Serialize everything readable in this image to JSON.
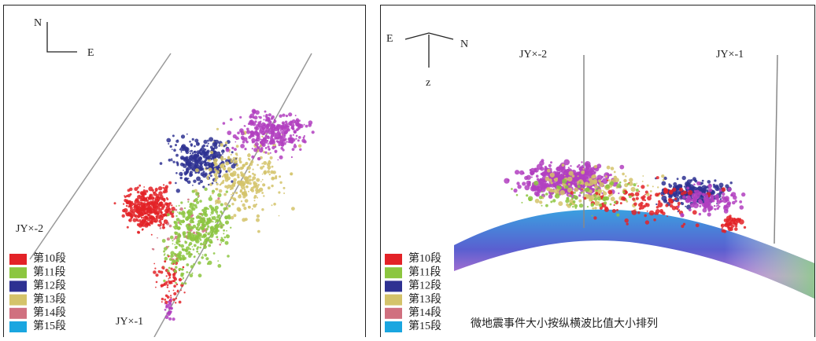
{
  "left_panel": {
    "compass": {
      "north": "N",
      "east": "E"
    },
    "wells": [
      "JY×-2",
      "JY×-1"
    ]
  },
  "right_panel": {
    "compass": {
      "east": "E",
      "north": "N",
      "down": "z"
    },
    "wells": [
      "JY×-2",
      "JY×-1"
    ],
    "caption": "微地震事件大小按纵横波比值大小排列"
  },
  "legend": [
    {
      "label": "第10段",
      "color": "#e32227"
    },
    {
      "label": "第11段",
      "color": "#8cc63f"
    },
    {
      "label": "第12段",
      "color": "#2e3192"
    },
    {
      "label": "第13段",
      "color": "#d4c36a"
    },
    {
      "label": "第14段",
      "color": "#d0707f"
    },
    {
      "label": "第15段",
      "color": "#1aa6e0"
    }
  ]
}
